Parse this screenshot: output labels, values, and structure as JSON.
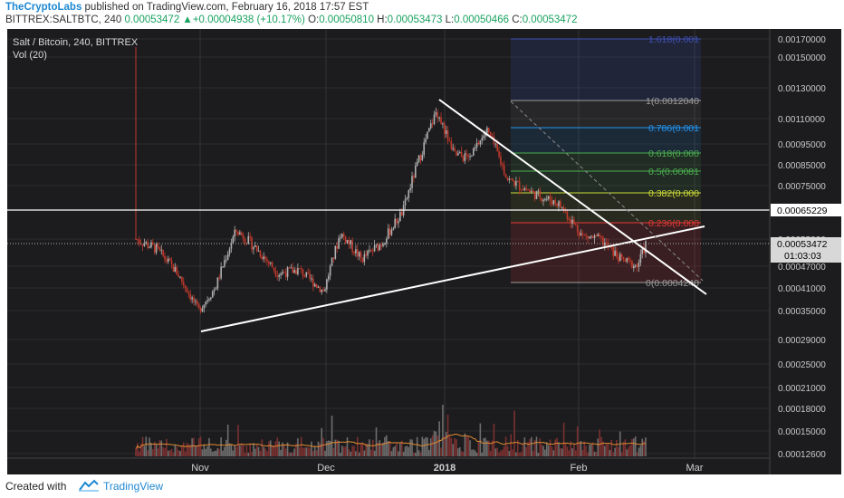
{
  "header": {
    "author": "TheCryptoLabs",
    "published": " published on TradingView.com, February 16, 2018 17:57 EST",
    "symbol": "BITTREX:SALTBTC, 240",
    "last": "0.00053472",
    "change_arrow": "▲",
    "change": "+0.00004938 (+10.17%)",
    "o_label": "O:",
    "o_value": "0.00050810",
    "h_label": "H:",
    "h_value": "0.00053473",
    "l_label": "L:",
    "l_value": "0.00050466",
    "c_label": "C:",
    "c_value": "0.00053472"
  },
  "legend": {
    "title": "Salt / Bitcoin, 240, BITTREX",
    "volume": "Vol (20)"
  },
  "footer": {
    "created": "Created with",
    "brand": "TradingView"
  },
  "colors": {
    "background": "#1c1c1e",
    "grid": "#3a3a3c",
    "up": "#b0b0b0",
    "down": "#c0392b",
    "trendline": "#ffffff",
    "last_price_bg": "#ffffff",
    "ma": "#e08a30"
  },
  "chart_data": {
    "type": "candlestick",
    "title": "Salt / Bitcoin, 240, BITTREX",
    "x_ticks": [
      "Nov",
      "Dec",
      "2018",
      "Feb",
      "Mar"
    ],
    "y_ticks": [
      0.0017,
      0.0015,
      0.0013,
      0.0011,
      0.00095,
      0.00085,
      0.00075,
      0.00065229,
      0.00055,
      0.00047,
      0.00041,
      0.00035,
      0.00029,
      0.00025,
      0.00021,
      0.00018,
      0.00015,
      0.000126
    ],
    "y_tick_labels": [
      "0.00170000",
      "0.00150000",
      "0.00130000",
      "0.00110000",
      "0.00095000",
      "0.00085000",
      "0.00075000",
      "0.00065229",
      "0.00055000",
      "0.00047000",
      "0.00041000",
      "0.00035000",
      "0.00029000",
      "0.00025000",
      "0.00021000",
      "0.00018000",
      "0.00015000",
      "0.00012600"
    ],
    "last_price": "0.00053472",
    "countdown": "01:03:03",
    "horizontal_level": "0.00065229",
    "price_series_approx": [
      {
        "t": "Oct 17",
        "v": 0.00055
      },
      {
        "t": "Oct 22",
        "v": 0.00052
      },
      {
        "t": "Oct 27",
        "v": 0.00045
      },
      {
        "t": "Nov 1",
        "v": 0.00035
      },
      {
        "t": "Nov 5",
        "v": 0.00041
      },
      {
        "t": "Nov 10",
        "v": 0.00058
      },
      {
        "t": "Nov 15",
        "v": 0.00052
      },
      {
        "t": "Nov 20",
        "v": 0.00045
      },
      {
        "t": "Nov 25",
        "v": 0.00046
      },
      {
        "t": "Dec 1",
        "v": 0.0004
      },
      {
        "t": "Dec 5",
        "v": 0.00057
      },
      {
        "t": "Dec 10",
        "v": 0.00049
      },
      {
        "t": "Dec 15",
        "v": 0.00054
      },
      {
        "t": "Dec 20",
        "v": 0.00065
      },
      {
        "t": "Dec 25",
        "v": 0.00095
      },
      {
        "t": "Dec 28",
        "v": 0.00115
      },
      {
        "t": "Jan 1",
        "v": 0.0009
      },
      {
        "t": "Jan 5",
        "v": 0.00088
      },
      {
        "t": "Jan 9",
        "v": 0.00103
      },
      {
        "t": "Jan 14",
        "v": 0.00078
      },
      {
        "t": "Jan 20",
        "v": 0.00072
      },
      {
        "t": "Jan 26",
        "v": 0.00068
      },
      {
        "t": "Feb 1",
        "v": 0.00056
      },
      {
        "t": "Feb 5",
        "v": 0.00055
      },
      {
        "t": "Feb 10",
        "v": 0.00049
      },
      {
        "t": "Feb 14",
        "v": 0.00047
      },
      {
        "t": "Feb 16",
        "v": 0.000535
      }
    ],
    "fibonacci": [
      {
        "level": "1.618",
        "text": "1.618(0.001",
        "color": "#3f51b5"
      },
      {
        "level": "1",
        "text": "1(0.0012040",
        "color": "#9e9e9e"
      },
      {
        "level": "0.786",
        "text": "0.786(0.001",
        "color": "#2196f3"
      },
      {
        "level": "0.618",
        "text": "0.618(0.000",
        "color": "#4caf50"
      },
      {
        "level": "0.5",
        "text": "0.5(0.00081",
        "color": "#4caf50"
      },
      {
        "level": "0.382",
        "text": "0.382(0.000",
        "color": "#cddc39"
      },
      {
        "level": "0.236",
        "text": "0.236(0.000",
        "color": "#e53935"
      },
      {
        "level": "0",
        "text": "0(0.0004240",
        "color": "#9e9e9e"
      }
    ]
  }
}
